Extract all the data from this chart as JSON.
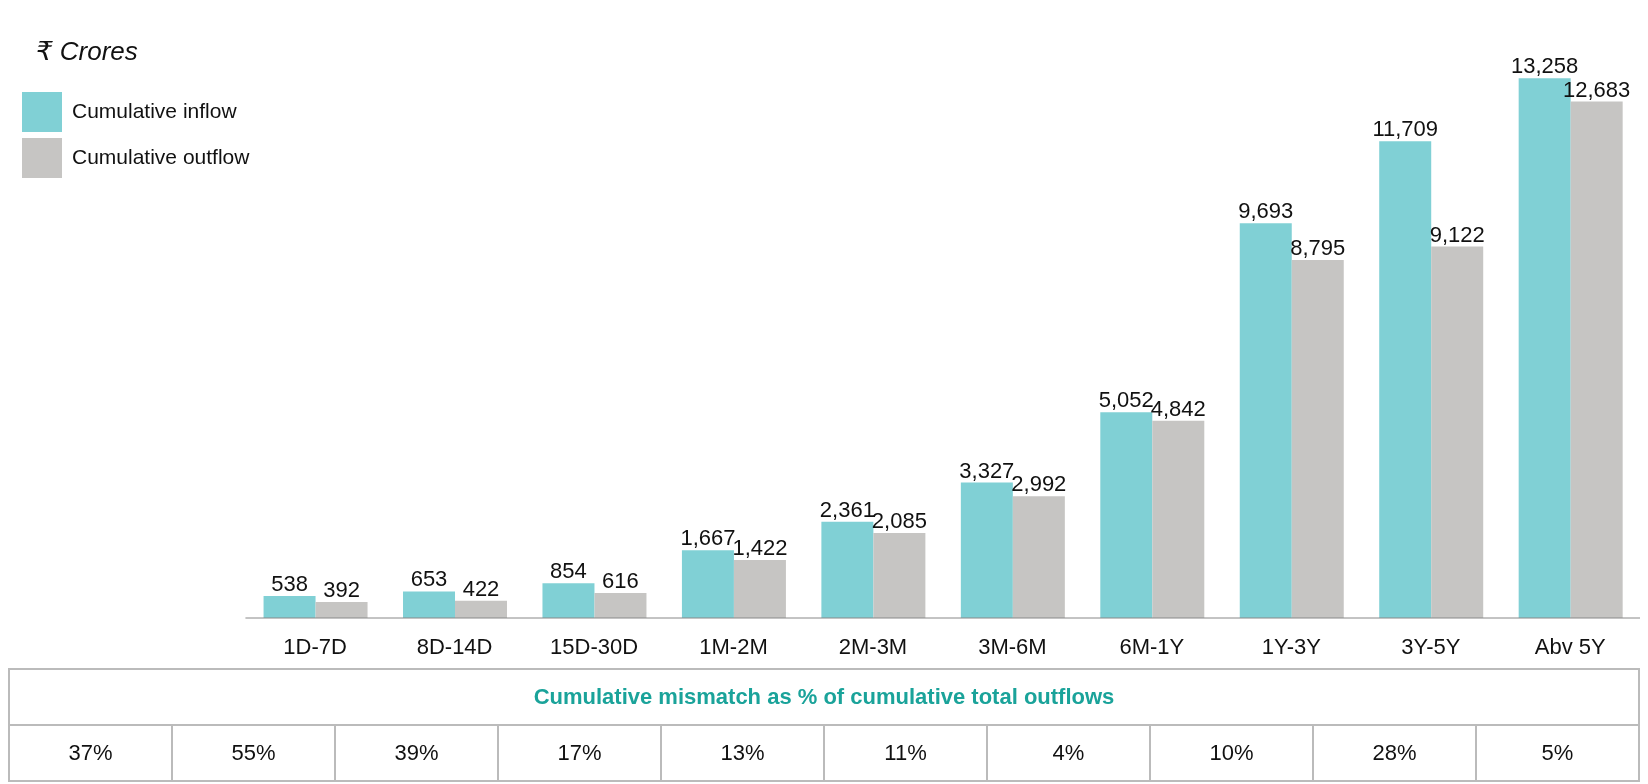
{
  "chart_data": {
    "type": "bar",
    "ylabel": "₹ Crores",
    "categories": [
      "1D-7D",
      "8D-14D",
      "15D-30D",
      "1M-2M",
      "2M-3M",
      "3M-6M",
      "6M-1Y",
      "1Y-3Y",
      "3Y-5Y",
      "Abv 5Y"
    ],
    "series": [
      {
        "name": "Cumulative inflow",
        "color": "#80d0d5",
        "values": [
          538,
          653,
          854,
          1667,
          2361,
          3327,
          5052,
          9693,
          11709,
          13258
        ],
        "value_labels": [
          "538",
          "653",
          "854",
          "1,667",
          "2,361",
          "3,327",
          "5,052",
          "9,693",
          "11,709",
          "13,258"
        ]
      },
      {
        "name": "Cumulative outflow",
        "color": "#c6c5c3",
        "values": [
          392,
          422,
          616,
          1422,
          2085,
          2992,
          4842,
          8795,
          9122,
          12683
        ],
        "value_labels": [
          "392",
          "422",
          "616",
          "1,422",
          "2,085",
          "2,992",
          "4,842",
          "8,795",
          "9,122",
          "12,683"
        ]
      }
    ],
    "legend": "top left",
    "annotations": [
      "Cumulative mismatch as % of cumulative total outflows",
      "37%",
      "55%",
      "39%",
      "17%",
      "13%",
      "11%",
      "4%",
      "10%",
      "28%",
      "5%"
    ]
  }
}
